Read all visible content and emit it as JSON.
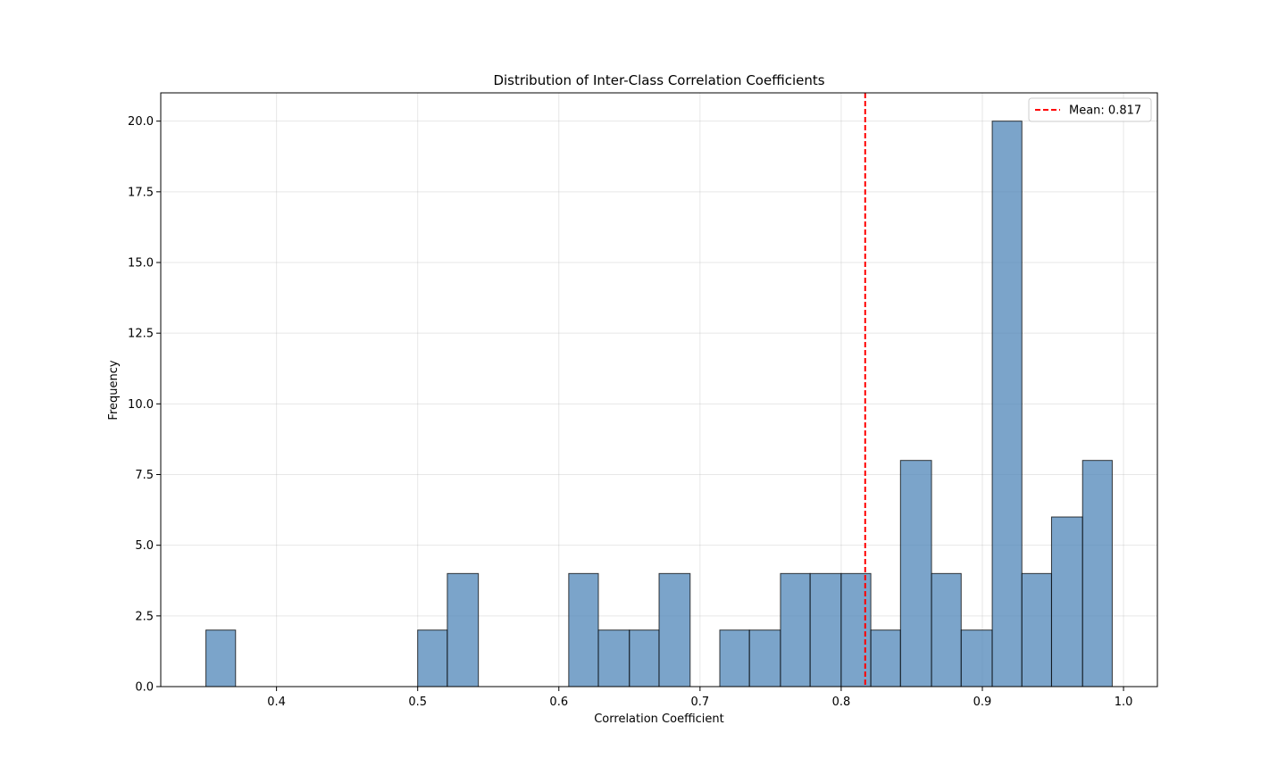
{
  "chart_data": {
    "type": "bar",
    "title": "Distribution of Inter-Class Correlation Coefficients",
    "xlabel": "Correlation Coefficient",
    "ylabel": "Frequency",
    "xlim": [
      0.318,
      1.024
    ],
    "ylim": [
      0,
      21
    ],
    "grid": true,
    "legend_position": "top-right",
    "bar_color": "#4f86b8",
    "bar_edge_color": "#000000",
    "mean_line_color": "#ff0000",
    "x_ticks": [
      0.4,
      0.5,
      0.6,
      0.7,
      0.8,
      0.9,
      1.0
    ],
    "x_tick_labels": [
      "0.4",
      "0.5",
      "0.6",
      "0.7",
      "0.8",
      "0.9",
      "1.0"
    ],
    "y_ticks": [
      0,
      2.5,
      5,
      7.5,
      10,
      12.5,
      15,
      17.5,
      20
    ],
    "y_tick_labels": [
      "0.0",
      "2.5",
      "5.0",
      "7.5",
      "10.0",
      "12.5",
      "15.0",
      "17.5",
      "20.0"
    ],
    "bins": [
      {
        "x0": 0.35,
        "x1": 0.371,
        "count": 2
      },
      {
        "x0": 0.5,
        "x1": 0.521,
        "count": 2
      },
      {
        "x0": 0.521,
        "x1": 0.543,
        "count": 4
      },
      {
        "x0": 0.607,
        "x1": 0.628,
        "count": 4
      },
      {
        "x0": 0.628,
        "x1": 0.65,
        "count": 2
      },
      {
        "x0": 0.65,
        "x1": 0.671,
        "count": 2
      },
      {
        "x0": 0.671,
        "x1": 0.693,
        "count": 4
      },
      {
        "x0": 0.714,
        "x1": 0.735,
        "count": 2
      },
      {
        "x0": 0.735,
        "x1": 0.757,
        "count": 2
      },
      {
        "x0": 0.757,
        "x1": 0.778,
        "count": 4
      },
      {
        "x0": 0.778,
        "x1": 0.8,
        "count": 4
      },
      {
        "x0": 0.8,
        "x1": 0.821,
        "count": 4
      },
      {
        "x0": 0.821,
        "x1": 0.842,
        "count": 2
      },
      {
        "x0": 0.842,
        "x1": 0.864,
        "count": 8
      },
      {
        "x0": 0.864,
        "x1": 0.885,
        "count": 4
      },
      {
        "x0": 0.885,
        "x1": 0.907,
        "count": 2
      },
      {
        "x0": 0.907,
        "x1": 0.928,
        "count": 20
      },
      {
        "x0": 0.928,
        "x1": 0.949,
        "count": 4
      },
      {
        "x0": 0.949,
        "x1": 0.971,
        "count": 6
      },
      {
        "x0": 0.971,
        "x1": 0.992,
        "count": 8
      }
    ],
    "mean": 0.817,
    "legend": {
      "entries": [
        {
          "label": "Mean: 0.817",
          "style": "dashed",
          "color": "#ff0000"
        }
      ]
    }
  }
}
